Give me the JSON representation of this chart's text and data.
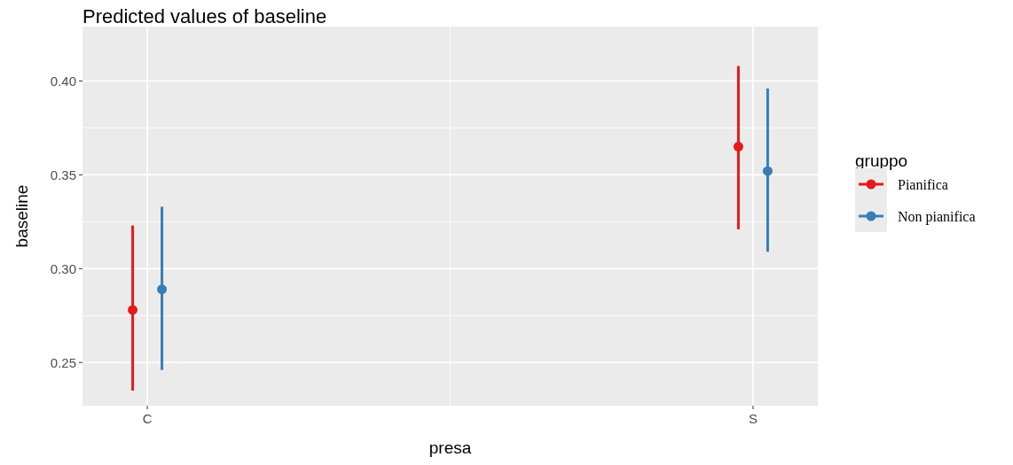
{
  "chart_data": {
    "type": "scatter",
    "title": "Predicted values of baseline",
    "xlabel": "presa",
    "ylabel": "baseline",
    "legend_title": "gruppo",
    "categories": [
      "C",
      "S"
    ],
    "series": [
      {
        "name": "Pianifica",
        "color": "#e41a1c",
        "values": [
          0.278,
          0.365
        ],
        "errors": [
          [
            0.235,
            0.323
          ],
          [
            0.321,
            0.408
          ]
        ]
      },
      {
        "name": "Non pianifica",
        "color": "#377eb8",
        "values": [
          0.289,
          0.352
        ],
        "errors": [
          [
            0.246,
            0.333
          ],
          [
            0.309,
            0.396
          ]
        ]
      }
    ],
    "ylim": [
      0.227,
      0.429
    ],
    "yticks": [
      {
        "value": 0.25,
        "label": "0.25"
      },
      {
        "value": 0.3,
        "label": "0.30"
      },
      {
        "value": 0.35,
        "label": "0.35"
      },
      {
        "value": 0.4,
        "label": "0.40"
      }
    ],
    "grid": true,
    "legend": "right",
    "marker": "circle"
  }
}
